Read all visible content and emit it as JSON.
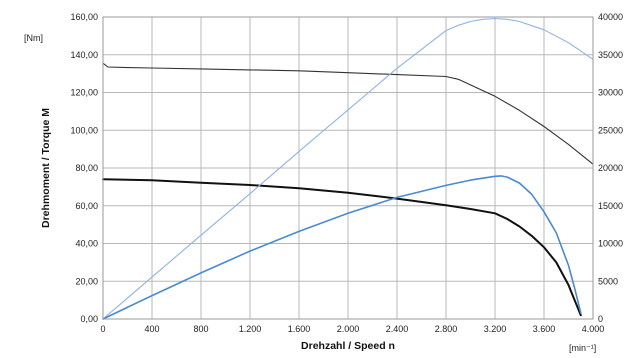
{
  "chart_data": {
    "type": "line",
    "xlabel": "Drehzahl / Speed n",
    "ylabel": "Drehmoment / Torque M",
    "y_unit_label": "[Nm]",
    "x_unit_label": "[min⁻¹]",
    "xlim": [
      0,
      4000
    ],
    "ylim_left": [
      0,
      160
    ],
    "ylim_right": [
      0,
      40000
    ],
    "grid": true,
    "x_ticks": [
      "0",
      "400",
      "800",
      "1.200",
      "1.600",
      "2.000",
      "2.400",
      "2.800",
      "3.200",
      "3.600",
      "4.000"
    ],
    "y_ticks_left": [
      "0,00",
      "20,00",
      "40,00",
      "60,00",
      "80,00",
      "100,00",
      "120,00",
      "140,00",
      "160,00"
    ],
    "y_ticks_right": [
      "0",
      "5000",
      "10000",
      "15000",
      "20000",
      "25000",
      "30000",
      "35000",
      "40000"
    ],
    "series": [
      {
        "axis": "left",
        "color": "#333333",
        "width": 1.1,
        "x": [
          0,
          40,
          200,
          400,
          800,
          1200,
          1600,
          2000,
          2400,
          2800,
          2900,
          3000,
          3100,
          3200,
          3400,
          3600,
          3800,
          4000
        ],
        "y": [
          135.5,
          133.5,
          133.2,
          133,
          132.5,
          132,
          131.5,
          130.5,
          129.5,
          128.5,
          127,
          124,
          121,
          118,
          110.5,
          102,
          92.5,
          82
        ]
      },
      {
        "axis": "left",
        "color": "#111111",
        "width": 2,
        "x": [
          0,
          400,
          800,
          1200,
          1600,
          2000,
          2400,
          2800,
          3000,
          3200,
          3300,
          3400,
          3500,
          3600,
          3700,
          3800,
          3850,
          3900
        ],
        "y": [
          74,
          73.5,
          72.2,
          71,
          69.3,
          66.9,
          63.8,
          60.3,
          58.3,
          56,
          53,
          49,
          44,
          38,
          30,
          18,
          10,
          2
        ]
      },
      {
        "axis": "right",
        "color": "#8fb3e0",
        "width": 1.1,
        "x": [
          0,
          400,
          800,
          1200,
          1600,
          2000,
          2400,
          2800,
          2900,
          3000,
          3100,
          3200,
          3300,
          3400,
          3600,
          3800,
          4000
        ],
        "y": [
          0,
          5550,
          11100,
          16600,
          22200,
          27700,
          33200,
          38200,
          38900,
          39400,
          39700,
          39800,
          39700,
          39400,
          38300,
          36600,
          34400
        ]
      },
      {
        "axis": "right",
        "color": "#4a8ad0",
        "width": 1.6,
        "x": [
          0,
          400,
          800,
          1200,
          1600,
          2000,
          2400,
          2800,
          3000,
          3200,
          3250,
          3300,
          3400,
          3500,
          3600,
          3700,
          3800,
          3850,
          3900
        ],
        "y": [
          0,
          3100,
          6100,
          9000,
          11600,
          14000,
          16100,
          17700,
          18400,
          18900,
          18950,
          18800,
          18000,
          16500,
          14200,
          11400,
          7100,
          4100,
          800
        ]
      }
    ]
  }
}
